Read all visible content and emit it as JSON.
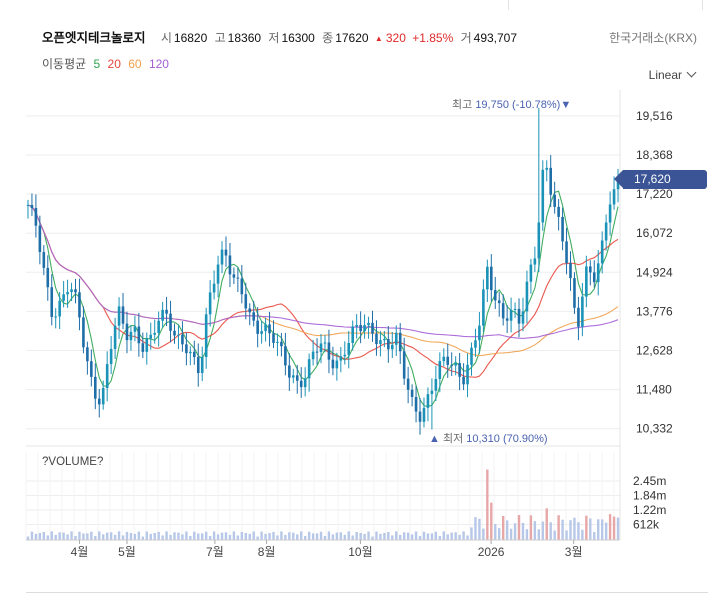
{
  "stock": {
    "name": "오픈엣지테크놀로지",
    "open_label": "시",
    "open": "16820",
    "high_label": "고",
    "high": "18360",
    "low_label": "저",
    "low": "16300",
    "close_label": "종",
    "close": "17620",
    "change_arrow": "▲",
    "change": "320",
    "change_pct": "+1.85%",
    "volume_label": "거",
    "volume": "493,707",
    "exchange": "한국거래소(KRX)"
  },
  "ma_legend": {
    "title": "이동평균",
    "periods": [
      {
        "label": "5",
        "color": "#2ea44f"
      },
      {
        "label": "20",
        "color": "#e8463b"
      },
      {
        "label": "60",
        "color": "#f0a04b"
      },
      {
        "label": "120",
        "color": "#a55fd6"
      }
    ]
  },
  "scale_mode": "Linear",
  "annotations": {
    "high_label": "최고",
    "high_value": "19,750 (-10.78%)",
    "high_marker": "▼",
    "low_marker": "▲",
    "low_label": "최저",
    "low_value": "10,310 (70.90%)"
  },
  "current_price_tag": "17,620",
  "volume_title": "?VOLUME?",
  "colors": {
    "candle": "#1e6ea8",
    "candle_up": "#1b93b8",
    "accent": "#3a5495",
    "up_red": "#e02b2b",
    "volume_bar": "#b7c7e8",
    "volume_bar_hi": "#e7a7a7"
  },
  "chart_data": {
    "type": "candlestick",
    "y_ticks": [
      "19,516",
      "18,368",
      "17,220",
      "16,072",
      "14,924",
      "13,776",
      "12,628",
      "11,480",
      "10,332"
    ],
    "ylim": [
      10000,
      20100
    ],
    "x_ticks": [
      "4월",
      "5월",
      "7월",
      "8월",
      "10월",
      "2026",
      "3월"
    ],
    "volume_ticks": [
      "2.45m",
      "1.84m",
      "1.22m",
      "612k"
    ],
    "volume_ylim": [
      0,
      3060000
    ],
    "grid": true,
    "series_close_keypoints": [
      16900,
      16200,
      14800,
      13700,
      14100,
      14600,
      13900,
      12500,
      11500,
      11200,
      12600,
      13700,
      13100,
      13300,
      12800,
      12900,
      13500,
      13700,
      13100,
      12900,
      12300,
      11900,
      14100,
      15200,
      15600,
      14600,
      14400,
      13700,
      13400,
      13200,
      12900,
      12500,
      12000,
      11700,
      11900,
      12600,
      12800,
      12400,
      12300,
      12800,
      13200,
      13400,
      13300,
      12900,
      12700,
      12900,
      11900,
      11100,
      10700,
      11200,
      12000,
      12500,
      12300,
      11700,
      12300,
      13300,
      15100,
      14300,
      13500,
      13700,
      13400,
      14800,
      15700,
      18200,
      17000,
      16100,
      15200,
      13200,
      14900,
      14600,
      15600,
      17200,
      17620
    ],
    "ma_note": "Moving averages MA5, MA20, MA60, MA120 computed from the close series"
  }
}
